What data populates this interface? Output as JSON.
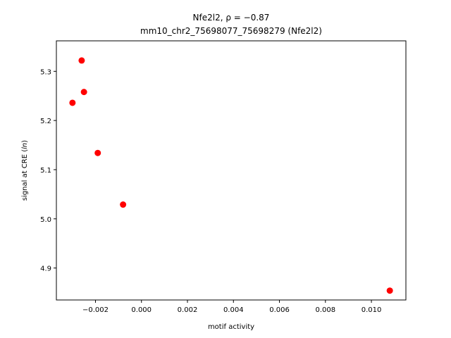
{
  "chart_data": {
    "type": "scatter",
    "title_line1": "Nfe2l2, ρ = −0.87",
    "title_line2": "mm10_chr2_75698077_75698279 (Nfe2l2)",
    "xlabel": "motif activity",
    "ylabel_main": "signal at CRE (",
    "ylabel_italic": "ln",
    "ylabel_end": ")",
    "xlim": [
      -0.0037,
      0.0115
    ],
    "ylim": [
      4.835,
      5.362
    ],
    "xticks": [
      -0.002,
      0.0,
      0.002,
      0.004,
      0.006,
      0.008,
      0.01
    ],
    "xtick_labels": [
      "−0.002",
      "0.000",
      "0.002",
      "0.004",
      "0.006",
      "0.008",
      "0.010"
    ],
    "yticks": [
      4.9,
      5.0,
      5.1,
      5.2,
      5.3
    ],
    "ytick_labels": [
      "4.9",
      "5.0",
      "5.1",
      "5.2",
      "5.3"
    ],
    "marker_color": "#ff0000",
    "points": [
      {
        "x": -0.0026,
        "y": 5.322
      },
      {
        "x": -0.0025,
        "y": 5.258
      },
      {
        "x": -0.003,
        "y": 5.236
      },
      {
        "x": -0.0019,
        "y": 5.134
      },
      {
        "x": -0.0008,
        "y": 5.029
      },
      {
        "x": 0.0108,
        "y": 4.854
      }
    ],
    "grid": false
  }
}
